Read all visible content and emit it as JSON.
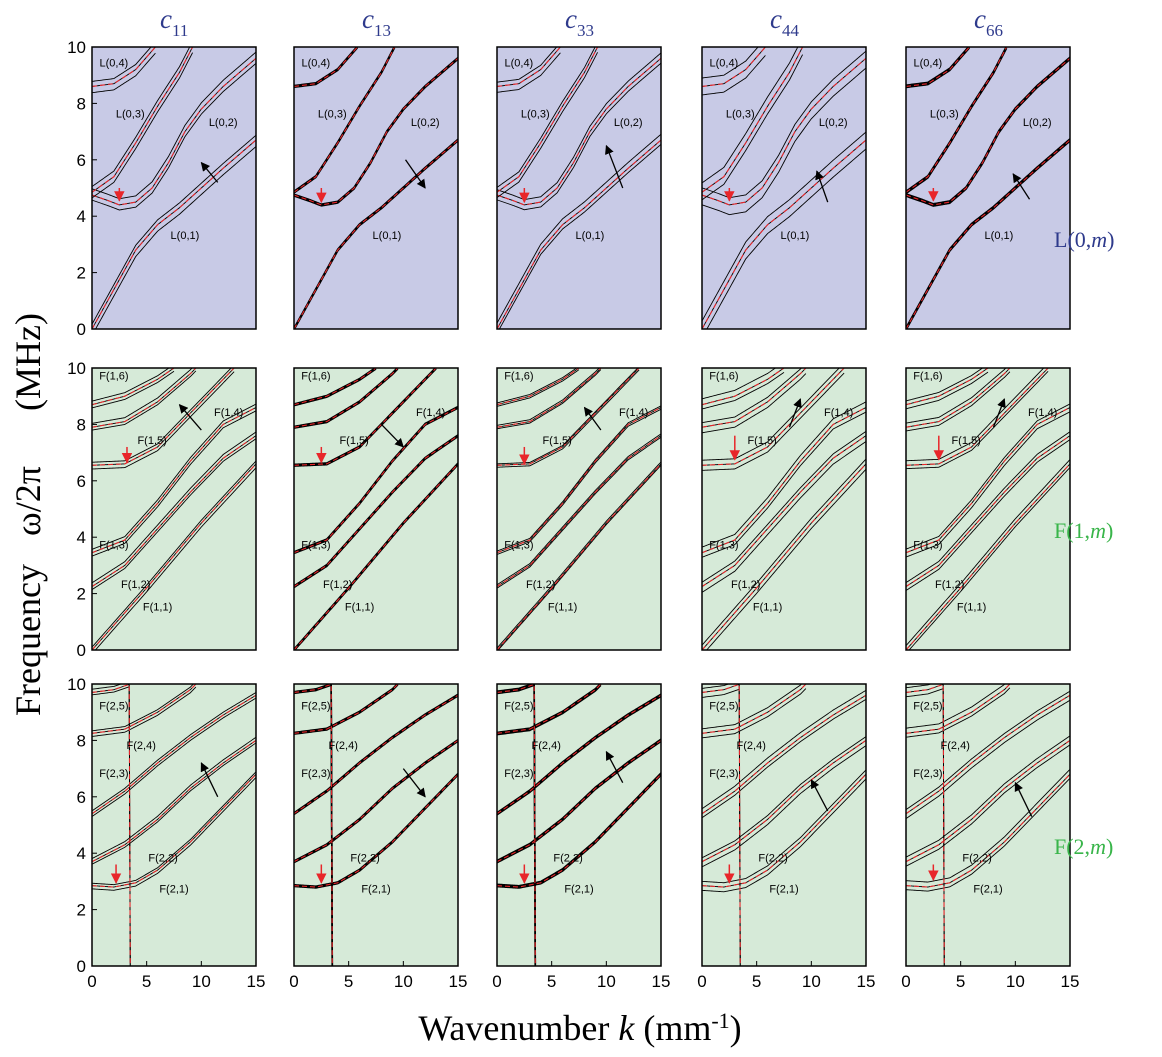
{
  "figure": {
    "ylabel_parts": [
      "Frequency",
      "ω/2π",
      "(MHz)"
    ],
    "xlabel_parts": [
      "Wavenumber ",
      "k",
      " (mm",
      "-1",
      ")"
    ],
    "colors": {
      "L_panel_bg": "#c8cae6",
      "F_panel_bg": "#d6ead8",
      "L_row_label": "#2e3a8c",
      "F_row_label": "#39b54a",
      "column_label": "#2e3a8c",
      "perturbed_curve": "#000000",
      "nominal_curve": "#e8262a",
      "marker_arrow": "#e8262a",
      "trend_arrow": "#000000"
    }
  },
  "chart_data": {
    "type": "line",
    "xlim": [
      0,
      15
    ],
    "ylim": [
      0,
      10
    ],
    "xticks": [
      "0",
      "5",
      "10",
      "15"
    ],
    "yticks": [
      "0",
      "2",
      "4",
      "6",
      "8",
      "10"
    ],
    "columns": [
      {
        "id": "c11",
        "sym": "c",
        "sub": "11"
      },
      {
        "id": "c13",
        "sym": "c",
        "sub": "13"
      },
      {
        "id": "c33",
        "sym": "c",
        "sub": "33"
      },
      {
        "id": "c44",
        "sym": "c",
        "sub": "44"
      },
      {
        "id": "c66",
        "sym": "c",
        "sub": "66"
      }
    ],
    "rows": [
      {
        "id": "L",
        "label_pre": "L(0,",
        "label_em": "m",
        "label_post": ")",
        "modes": [
          {
            "name": "L(0,1)",
            "points": [
              [
                0,
                0
              ],
              [
                2,
                1.4
              ],
              [
                4,
                2.8
              ],
              [
                6,
                3.7
              ],
              [
                8,
                4.3
              ],
              [
                10,
                5.0
              ],
              [
                12,
                5.7
              ],
              [
                15,
                6.7
              ]
            ],
            "label_at": [
              8.5,
              3.2
            ]
          },
          {
            "name": "L(0,2)",
            "points": [
              [
                0,
                4.75
              ],
              [
                1.5,
                4.55
              ],
              [
                2.5,
                4.4
              ],
              [
                4,
                4.5
              ],
              [
                5.5,
                5.0
              ],
              [
                7,
                5.9
              ],
              [
                8.5,
                7.0
              ],
              [
                10,
                7.8
              ],
              [
                12,
                8.6
              ],
              [
                15,
                9.6
              ]
            ],
            "label_at": [
              12,
              7.2
            ]
          },
          {
            "name": "L(0,3)",
            "points": [
              [
                0,
                4.85
              ],
              [
                2,
                5.4
              ],
              [
                4,
                6.6
              ],
              [
                6,
                7.9
              ],
              [
                8,
                9.1
              ],
              [
                9.2,
                10
              ]
            ],
            "label_at": [
              3.5,
              7.5
            ]
          },
          {
            "name": "L(0,4)",
            "points": [
              [
                0,
                8.6
              ],
              [
                2,
                8.7
              ],
              [
                4,
                9.2
              ],
              [
                5.8,
                10
              ]
            ],
            "label_at": [
              2,
              9.3
            ]
          }
        ],
        "markers": [
          [
            2.5,
            5.0,
            4.55
          ],
          [
            2.5,
            5.0,
            4.5
          ],
          [
            2.5,
            5.0,
            4.5
          ],
          [
            2.5,
            5.0,
            4.55
          ],
          [
            2.5,
            5.0,
            4.55
          ]
        ],
        "trend": [
          [
            11.5,
            5.2,
            10,
            5.9
          ],
          [
            10.2,
            6.0,
            12,
            5.0
          ],
          [
            11.5,
            5.0,
            10,
            6.5
          ],
          [
            11.5,
            4.5,
            10.5,
            5.6
          ],
          [
            11.3,
            4.6,
            9.8,
            5.5
          ]
        ],
        "spread": [
          0.2,
          0.03,
          0.18,
          0.3,
          0.04
        ]
      },
      {
        "id": "F1",
        "label_pre": "F(1,",
        "label_em": "m",
        "label_post": ")",
        "modes": [
          {
            "name": "F(1,1)",
            "points": [
              [
                0,
                0
              ],
              [
                5,
                2.2
              ],
              [
                10,
                4.5
              ],
              [
                15,
                6.6
              ]
            ],
            "label_at": [
              6,
              1.4
            ]
          },
          {
            "name": "F(1,2)",
            "points": [
              [
                0,
                2.25
              ],
              [
                3,
                3.0
              ],
              [
                6,
                4.3
              ],
              [
                9,
                5.6
              ],
              [
                12,
                6.8
              ],
              [
                15,
                7.6
              ]
            ],
            "label_at": [
              4,
              2.2
            ]
          },
          {
            "name": "F(1,3)",
            "points": [
              [
                0,
                3.45
              ],
              [
                3,
                3.9
              ],
              [
                6,
                5.2
              ],
              [
                9,
                6.7
              ],
              [
                12,
                8.0
              ],
              [
                15,
                8.6
              ]
            ],
            "label_at": [
              2,
              3.6
            ]
          },
          {
            "name": "F(1,4)",
            "points": [
              [
                0,
                6.55
              ],
              [
                3,
                6.6
              ],
              [
                6,
                7.2
              ],
              [
                8,
                8.0
              ],
              [
                10,
                8.8
              ],
              [
                12,
                9.6
              ],
              [
                13,
                10
              ]
            ],
            "label_at": [
              12.5,
              8.3
            ]
          },
          {
            "name": "F(1,5)",
            "points": [
              [
                0,
                7.9
              ],
              [
                3,
                8.1
              ],
              [
                6,
                8.8
              ],
              [
                9,
                9.8
              ],
              [
                9.5,
                10
              ]
            ],
            "label_at": [
              5.5,
              7.3
            ]
          },
          {
            "name": "F(1,6)",
            "points": [
              [
                0,
                8.7
              ],
              [
                3,
                9.0
              ],
              [
                6,
                9.6
              ],
              [
                7.5,
                10
              ]
            ],
            "label_at": [
              2,
              9.6
            ]
          }
        ],
        "markers": [
          [
            3.2,
            7.2,
            6.65
          ],
          [
            2.5,
            7.2,
            6.65
          ],
          [
            2.5,
            7.2,
            6.6
          ],
          [
            3.0,
            7.6,
            6.75
          ],
          [
            3.0,
            7.6,
            6.75
          ]
        ],
        "trend": [
          [
            10,
            7.8,
            8,
            8.7
          ],
          [
            8,
            8.0,
            10,
            7.2
          ],
          [
            9.5,
            7.8,
            8,
            8.6
          ],
          [
            8,
            7.9,
            9,
            8.9
          ],
          [
            8,
            7.9,
            9,
            8.9
          ]
        ],
        "spread": [
          0.12,
          0.03,
          0.06,
          0.18,
          0.14
        ]
      },
      {
        "id": "F2",
        "label_pre": "F(2,",
        "label_em": "m",
        "label_post": ")",
        "modes": [
          {
            "name": "F(2,1)",
            "points": [
              [
                0,
                2.85
              ],
              [
                2,
                2.8
              ],
              [
                4,
                2.95
              ],
              [
                6,
                3.4
              ],
              [
                9,
                4.4
              ],
              [
                12,
                5.6
              ],
              [
                15,
                6.8
              ]
            ],
            "label_at": [
              7.5,
              2.6
            ]
          },
          {
            "name": "F(2,2)",
            "points": [
              [
                0,
                3.7
              ],
              [
                3,
                4.3
              ],
              [
                6,
                5.2
              ],
              [
                9,
                6.3
              ],
              [
                12,
                7.2
              ],
              [
                15,
                8.0
              ]
            ],
            "label_at": [
              6.5,
              3.7
            ]
          },
          {
            "name": "F(2,3)",
            "points": [
              [
                0,
                5.4
              ],
              [
                3,
                6.2
              ],
              [
                6,
                7.2
              ],
              [
                9,
                8.1
              ],
              [
                12,
                8.9
              ],
              [
                15,
                9.6
              ]
            ],
            "label_at": [
              2,
              6.7
            ]
          },
          {
            "name": "F(2,4)",
            "points": [
              [
                0,
                8.25
              ],
              [
                3,
                8.4
              ],
              [
                6,
                9.0
              ],
              [
                9,
                9.8
              ],
              [
                9.5,
                10
              ]
            ],
            "label_at": [
              4.5,
              7.7
            ]
          },
          {
            "name": "F(2,5)",
            "points": [
              [
                0,
                9.7
              ],
              [
                2,
                9.8
              ],
              [
                3.5,
                10
              ]
            ],
            "label_at": [
              2,
              9.1
            ]
          }
        ],
        "markers": [
          [
            2.2,
            3.6,
            2.95
          ],
          [
            2.5,
            3.6,
            2.95
          ],
          [
            2.5,
            3.6,
            2.95
          ],
          [
            2.5,
            3.6,
            2.95
          ],
          [
            2.5,
            3.6,
            3.05
          ]
        ],
        "trend": [
          [
            11.5,
            6.0,
            10,
            7.2
          ],
          [
            10,
            7.0,
            12,
            6.0
          ],
          [
            11.5,
            6.5,
            10,
            7.6
          ],
          [
            11.5,
            5.5,
            10,
            6.6
          ],
          [
            11.5,
            5.3,
            10,
            6.5
          ]
        ],
        "spread": [
          0.1,
          0.03,
          0.04,
          0.16,
          0.16
        ]
      }
    ]
  }
}
